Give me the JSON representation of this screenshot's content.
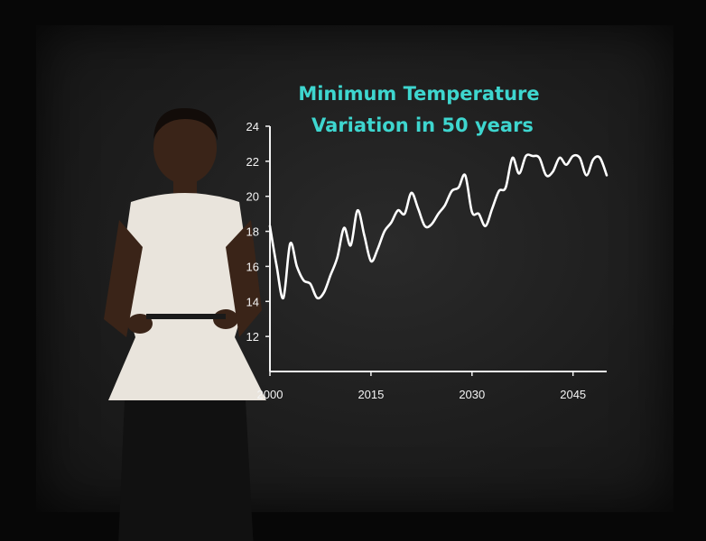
{
  "chart_data": {
    "type": "line",
    "title": [
      "Minimum Temperature",
      "Variation in 50 years"
    ],
    "xlabel": "",
    "ylabel": "",
    "xlim": [
      2000,
      2050
    ],
    "ylim": [
      10,
      24
    ],
    "x_ticks": [
      "2000",
      "2015",
      "2030",
      "2045"
    ],
    "x_tick_values": [
      2000,
      2015,
      2030,
      2045
    ],
    "y_ticks": [
      "12",
      "14",
      "16",
      "18",
      "20",
      "22",
      "24"
    ],
    "y_tick_values": [
      12,
      14,
      16,
      18,
      20,
      22,
      24
    ],
    "grid": false,
    "series": [
      {
        "x": [
          2000,
          2001,
          2002,
          2003,
          2004,
          2005,
          2006,
          2007,
          2008,
          2009,
          2010,
          2011,
          2012,
          2013,
          2014,
          2015,
          2016,
          2017,
          2018,
          2019,
          2020,
          2021,
          2022,
          2023,
          2024,
          2025,
          2026,
          2027,
          2028,
          2029,
          2030,
          2031,
          2032,
          2033,
          2034,
          2035,
          2036,
          2037,
          2038,
          2039,
          2040,
          2041,
          2042,
          2043,
          2044,
          2045,
          2046,
          2047,
          2048,
          2049,
          2050
        ],
        "values": [
          18.3,
          16.0,
          14.2,
          17.3,
          16.0,
          15.2,
          15.0,
          14.2,
          14.5,
          15.5,
          16.5,
          18.2,
          17.2,
          19.2,
          17.8,
          16.3,
          17.0,
          18.0,
          18.5,
          19.2,
          19.0,
          20.2,
          19.3,
          18.3,
          18.4,
          19.0,
          19.5,
          20.3,
          20.5,
          21.2,
          19.1,
          19.0,
          18.3,
          19.3,
          20.3,
          20.5,
          22.2,
          21.3,
          22.3,
          22.3,
          22.2,
          21.2,
          21.4,
          22.2,
          21.8,
          22.3,
          22.2,
          21.2,
          22.1,
          22.2,
          21.2
        ]
      }
    ],
    "colors": {
      "line": "#ffffff",
      "title": "#3ed6cf",
      "axis": "#f2f2f2"
    }
  }
}
